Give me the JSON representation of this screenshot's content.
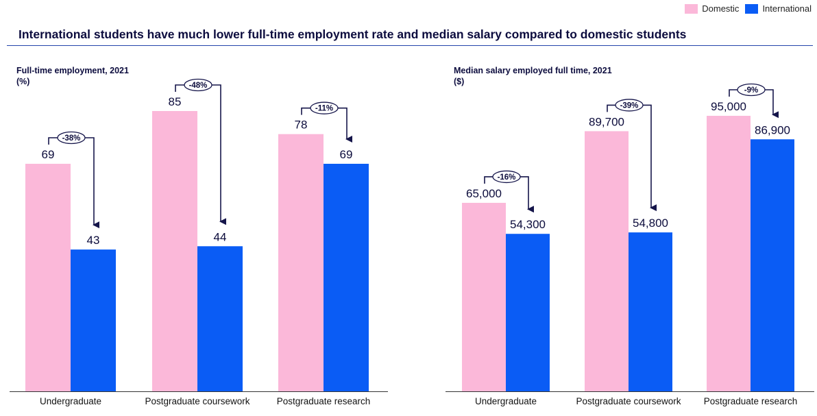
{
  "title": "International students have much lower full-time employment rate and median salary compared to domestic students",
  "legend": [
    {
      "label": "Domestic",
      "color": "#fbb8d9"
    },
    {
      "label": "International",
      "color": "#0a5cf5"
    }
  ],
  "colors": {
    "domestic": "#fbb8d9",
    "international": "#0a5cf5",
    "arrow": "#15154a"
  },
  "chart_data": [
    {
      "type": "bar",
      "title": "Full-time employment, 2021",
      "unit": "(%)",
      "categories": [
        "Undergraduate",
        "Postgraduate coursework",
        "Postgraduate research"
      ],
      "series": [
        {
          "name": "Domestic",
          "values": [
            69,
            85,
            78
          ],
          "labels": [
            "69",
            "85",
            "78"
          ]
        },
        {
          "name": "International",
          "values": [
            43,
            44,
            69
          ],
          "labels": [
            "43",
            "44",
            "69"
          ]
        }
      ],
      "differences": [
        "-38%",
        "-48%",
        "-11%"
      ],
      "ylim": [
        0,
        85
      ],
      "grid": false
    },
    {
      "type": "bar",
      "title": "Median salary employed full time, 2021",
      "unit": "($)",
      "categories": [
        "Undergraduate",
        "Postgraduate coursework",
        "Postgraduate research"
      ],
      "series": [
        {
          "name": "Domestic",
          "values": [
            65000,
            89700,
            95000
          ],
          "labels": [
            "65,000",
            "89,700",
            "95,000"
          ]
        },
        {
          "name": "International",
          "values": [
            54300,
            54800,
            86900
          ],
          "labels": [
            "54,300",
            "54,800",
            "86,900"
          ]
        }
      ],
      "differences": [
        "-16%",
        "-39%",
        "-9%"
      ],
      "ylim": [
        0,
        95000
      ],
      "grid": false
    }
  ]
}
